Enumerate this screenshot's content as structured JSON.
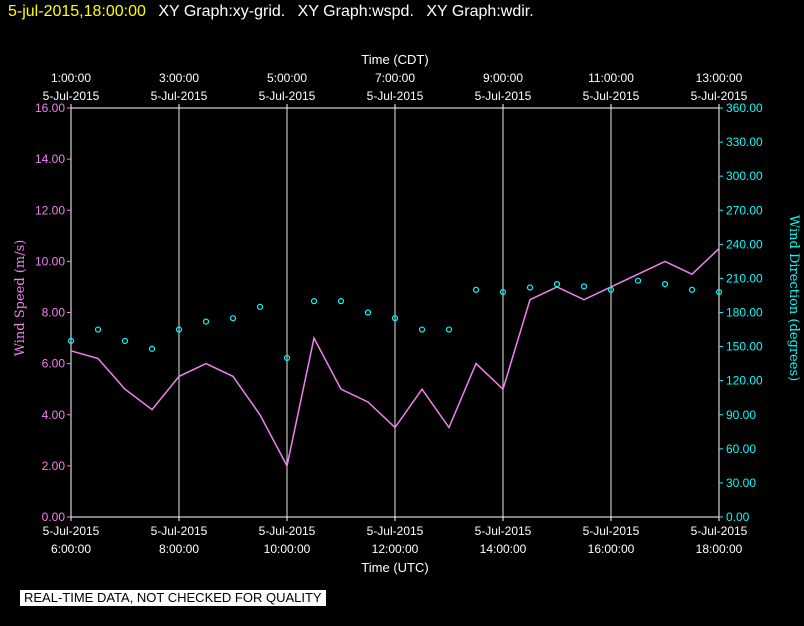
{
  "header": {
    "datetime": "5-jul-2015,18:00:00",
    "graph_labels": [
      "XY Graph:xy-grid.",
      "XY Graph:wspd.",
      "XY Graph:wdir."
    ]
  },
  "qc_notice": "REAL-TIME DATA, NOT CHECKED FOR QUALITY",
  "colors": {
    "background": "#000000",
    "axis": "#ffffff",
    "grid": "#ffffff",
    "wind_speed": "#ee82ee",
    "wind_direction": "#00ffff",
    "header_time": "#ffff00"
  },
  "chart_data": {
    "type": "line",
    "title": "",
    "top_axis": {
      "label": "Time (CDT)",
      "ticks": [
        {
          "t": 0,
          "line1": "1:00:00",
          "line2": "5-Jul-2015"
        },
        {
          "t": 2,
          "line1": "3:00:00",
          "line2": "5-Jul-2015"
        },
        {
          "t": 4,
          "line1": "5:00:00",
          "line2": "5-Jul-2015"
        },
        {
          "t": 6,
          "line1": "7:00:00",
          "line2": "5-Jul-2015"
        },
        {
          "t": 8,
          "line1": "9:00:00",
          "line2": "5-Jul-2015"
        },
        {
          "t": 10,
          "line1": "11:00:00",
          "line2": "5-Jul-2015"
        },
        {
          "t": 12,
          "line1": "13:00:00",
          "line2": "5-Jul-2015"
        }
      ]
    },
    "bottom_axis": {
      "label": "Time (UTC)",
      "ticks": [
        {
          "t": 0,
          "line1": "5-Jul-2015",
          "line2": "6:00:00"
        },
        {
          "t": 2,
          "line1": "5-Jul-2015",
          "line2": "8:00:00"
        },
        {
          "t": 4,
          "line1": "5-Jul-2015",
          "line2": "10:00:00"
        },
        {
          "t": 6,
          "line1": "5-Jul-2015",
          "line2": "12:00:00"
        },
        {
          "t": 8,
          "line1": "5-Jul-2015",
          "line2": "14:00:00"
        },
        {
          "t": 10,
          "line1": "5-Jul-2015",
          "line2": "16:00:00"
        },
        {
          "t": 12,
          "line1": "5-Jul-2015",
          "line2": "18:00:00"
        }
      ],
      "xlim": [
        0,
        12
      ]
    },
    "left_axis": {
      "label": "Wind Speed (m/s)",
      "ylim": [
        0,
        16
      ],
      "ticks": [
        "0.00",
        "2.00",
        "4.00",
        "6.00",
        "8.00",
        "10.00",
        "12.00",
        "14.00",
        "16.00"
      ]
    },
    "right_axis": {
      "label": "Wind Direction (degrees)",
      "ylim": [
        0,
        360
      ],
      "ticks": [
        "0.00",
        "30.00",
        "60.00",
        "90.00",
        "120.00",
        "150.00",
        "180.00",
        "210.00",
        "240.00",
        "270.00",
        "300.00",
        "330.00",
        "360.00"
      ]
    },
    "grid": "vertical lines at bottom-axis ticks",
    "series": [
      {
        "axis": "left",
        "style": "line",
        "x": [
          0,
          0.5,
          1,
          1.5,
          2,
          2.5,
          3,
          3.5,
          4,
          4.5,
          5,
          5.5,
          6,
          6.5,
          7,
          7.5,
          8,
          8.5,
          9,
          9.5,
          10,
          10.5,
          11,
          11.5,
          12
        ],
        "y": [
          6.5,
          6.2,
          5.0,
          4.2,
          5.5,
          6.0,
          5.5,
          4.0,
          2.0,
          7.0,
          5.0,
          4.5,
          3.5,
          5.0,
          3.5,
          6.0,
          5.0,
          8.5,
          9.0,
          8.5,
          9.0,
          9.5,
          10.0,
          9.5,
          10.5
        ]
      },
      {
        "axis": "right",
        "style": "points",
        "x": [
          0,
          0.5,
          1,
          1.5,
          2,
          2.5,
          3,
          3.5,
          4,
          4.5,
          5,
          5.5,
          6,
          6.5,
          7,
          7.5,
          8,
          8.5,
          9,
          9.5,
          10,
          10.5,
          11,
          11.5,
          12
        ],
        "y": [
          155,
          165,
          155,
          148,
          165,
          172,
          175,
          185,
          140,
          190,
          190,
          180,
          175,
          165,
          165,
          200,
          198,
          202,
          205,
          203,
          200,
          208,
          205,
          200,
          198
        ]
      }
    ]
  }
}
